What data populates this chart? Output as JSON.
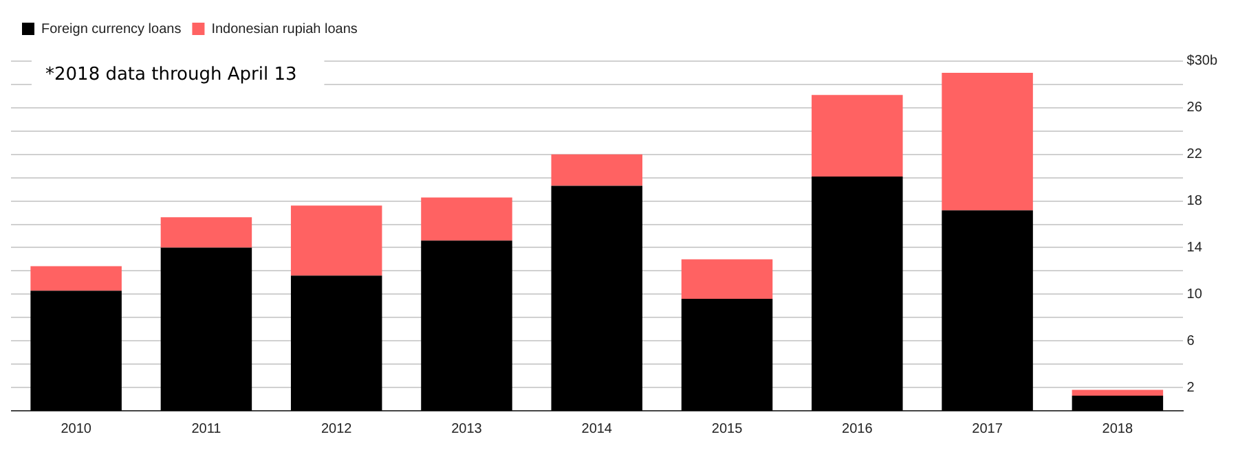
{
  "chart_data": {
    "type": "bar",
    "stacked": true,
    "categories": [
      "2010",
      "2011",
      "2012",
      "2013",
      "2014",
      "2015",
      "2016",
      "2017",
      "2018"
    ],
    "series": [
      {
        "name": "Foreign currency loans",
        "color": "#000000",
        "values": [
          10.3,
          14.0,
          11.6,
          14.6,
          19.3,
          9.6,
          20.1,
          17.2,
          1.3
        ]
      },
      {
        "name": "Indonesian rupiah loans",
        "color": "#ff6262",
        "values": [
          2.1,
          2.6,
          6.0,
          3.7,
          2.7,
          3.4,
          7.0,
          11.8,
          0.5
        ]
      }
    ],
    "ylim": [
      0,
      31
    ],
    "yticks": [
      2,
      {
        "value": 4,
        "label": null
      },
      6,
      {
        "value": 8,
        "label": null
      },
      10,
      {
        "value": 12,
        "label": null
      },
      14,
      {
        "value": 16,
        "label": null
      },
      18,
      {
        "value": 20,
        "label": null
      },
      22,
      {
        "value": 24,
        "label": null
      },
      26,
      {
        "value": 28,
        "label": null
      },
      {
        "value": 30,
        "label": "$30b"
      }
    ],
    "grid": "y",
    "legend": "top left",
    "annotations": [
      "*2018 data through April 13"
    ]
  }
}
